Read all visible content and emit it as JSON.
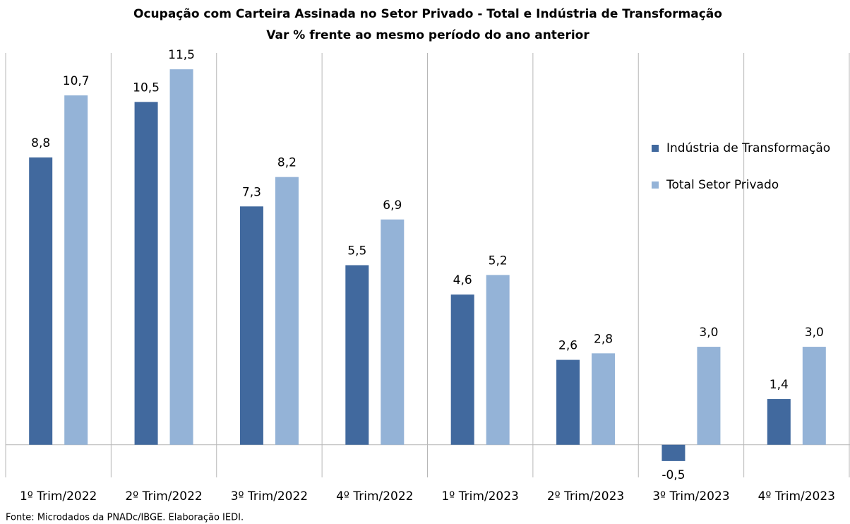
{
  "chart_data": {
    "type": "bar",
    "title": "Ocupação com Carteira Assinada no Setor Privado - Total e Indústria de Transformação",
    "subtitle": "Var % frente ao mesmo período do ano anterior",
    "categories": [
      "1º Trim/2022",
      "2º Trim/2022",
      "3º Trim/2022",
      "4º Trim/2022",
      "1º Trim/2023",
      "2º Trim/2023",
      "3º Trim/2023",
      "4º Trim/2023"
    ],
    "series": [
      {
        "name": "Indústria de Transformação",
        "color": "#41699e",
        "values": [
          8.8,
          10.5,
          7.3,
          5.5,
          4.6,
          2.6,
          -0.5,
          1.4
        ],
        "value_labels": [
          "8,8",
          "10,5",
          "7,3",
          "5,5",
          "4,6",
          "2,6",
          "-0,5",
          "1,4"
        ]
      },
      {
        "name": "Total Setor Privado",
        "color": "#94b3d7",
        "values": [
          10.7,
          11.5,
          8.2,
          6.9,
          5.2,
          2.8,
          3.0,
          3.0
        ],
        "value_labels": [
          "10,7",
          "11,5",
          "8,2",
          "6,9",
          "5,2",
          "2,8",
          "3,0",
          "3,0"
        ]
      }
    ],
    "ylim": [
      -1,
      12
    ],
    "legend": "right",
    "source": "Fonte: Microdados da PNADc/IBGE. Elaboração IEDI."
  }
}
